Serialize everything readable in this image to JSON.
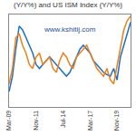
{
  "chart_data": {
    "type": "line",
    "title": "(Y/Y%) and US ISM Index (Y/Y%)",
    "annotations": [
      "www.kshitij.com"
    ],
    "categories": [
      "Mar-09",
      null,
      null,
      null,
      null,
      null,
      null,
      null,
      "Nov-11",
      null,
      null,
      null,
      null,
      null,
      null,
      null,
      "Jul-14",
      null,
      null,
      null,
      null,
      null,
      null,
      null,
      "Mar-17",
      null,
      null,
      null,
      null,
      null,
      null,
      null,
      "Nov-19",
      null,
      null,
      null,
      null
    ],
    "series": [
      {
        "name": "US ISM Index (Y/Y%)",
        "color": "#1f6fc5",
        "values": [
          -40,
          -20,
          15,
          45,
          40,
          30,
          20,
          10,
          -5,
          -10,
          -5,
          0,
          5,
          0,
          -5,
          -10,
          -15,
          -20,
          -15,
          -5,
          5,
          15,
          20,
          15,
          10,
          0,
          -5,
          -10,
          -15,
          -18,
          -20,
          -10,
          -25,
          5,
          20,
          35,
          50
        ]
      },
      {
        "name": "(Y/Y%)",
        "color": "#f07f16",
        "values": [
          -30,
          -10,
          30,
          35,
          20,
          10,
          -5,
          -10,
          5,
          10,
          -5,
          0,
          5,
          -10,
          -15,
          0,
          10,
          5,
          -5,
          -10,
          5,
          10,
          15,
          20,
          10,
          0,
          -10,
          -15,
          -20,
          -10,
          -25,
          -30,
          -5,
          20,
          40,
          52,
          58
        ]
      }
    ],
    "ylim": [
      -60,
      60
    ],
    "tick_labels": "x",
    "grid": false
  }
}
